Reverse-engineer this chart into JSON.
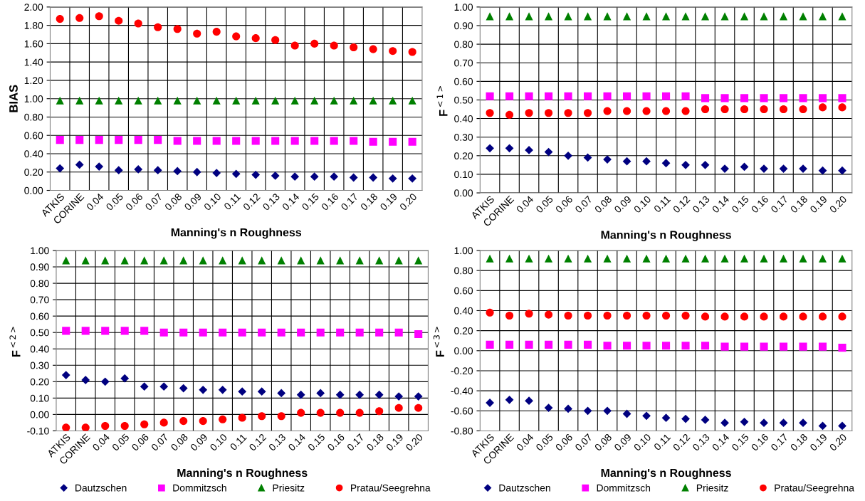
{
  "chart_data": [
    {
      "type": "scatter",
      "ylabel": "BIAS",
      "xlabel": "Manning's n Roughness",
      "categories": [
        "ATKIS",
        "CORINE",
        "0.04",
        "0.05",
        "0.06",
        "0.07",
        "0.08",
        "0.09",
        "0.10",
        "0.11",
        "0.12",
        "0.13",
        "0.14",
        "0.15",
        "0.16",
        "0.17",
        "0.18",
        "0.19",
        "0.20"
      ],
      "ylim": [
        0,
        2
      ],
      "yticks": [
        {
          "value": 0,
          "label": "0.00"
        },
        {
          "value": 0.2,
          "label": "0.20"
        },
        {
          "value": 0.4,
          "label": "0.40"
        },
        {
          "value": 0.6,
          "label": "0.60"
        },
        {
          "value": 0.8,
          "label": "0.80"
        },
        {
          "value": 1.0,
          "label": "1.00"
        },
        {
          "value": 1.2,
          "label": "1.20"
        },
        {
          "value": 1.4,
          "label": "1.40"
        },
        {
          "value": 1.6,
          "label": "1.60"
        },
        {
          "value": 1.8,
          "label": "1.80"
        },
        {
          "value": 2.0,
          "label": "2.00"
        }
      ],
      "grid": true,
      "legend": false,
      "series": [
        {
          "color": "#000080",
          "marker": "diamond",
          "values": [
            0.24,
            0.28,
            0.26,
            0.22,
            0.23,
            0.22,
            0.21,
            0.2,
            0.19,
            0.18,
            0.17,
            0.16,
            0.15,
            0.15,
            0.15,
            0.14,
            0.14,
            0.13,
            0.13
          ]
        },
        {
          "color": "#ff00ff",
          "marker": "square",
          "values": [
            0.55,
            0.55,
            0.55,
            0.55,
            0.55,
            0.55,
            0.54,
            0.54,
            0.54,
            0.54,
            0.54,
            0.54,
            0.54,
            0.54,
            0.54,
            0.54,
            0.53,
            0.53,
            0.53
          ]
        },
        {
          "color": "#008000",
          "marker": "triangle",
          "values": [
            0.98,
            0.98,
            0.98,
            0.98,
            0.98,
            0.98,
            0.98,
            0.98,
            0.98,
            0.98,
            0.98,
            0.98,
            0.98,
            0.98,
            0.98,
            0.98,
            0.98,
            0.98,
            0.98
          ]
        },
        {
          "color": "#ff0000",
          "marker": "circle",
          "values": [
            1.87,
            1.88,
            1.9,
            1.85,
            1.82,
            1.78,
            1.76,
            1.71,
            1.73,
            1.68,
            1.66,
            1.64,
            1.58,
            1.6,
            1.58,
            1.56,
            1.54,
            1.52,
            1.51
          ]
        }
      ]
    },
    {
      "type": "scatter",
      "ylabel": "F$^{<1>}$",
      "xlabel": "Manning's n Roughness",
      "categories": [
        "ATKIS",
        "CORINE",
        "0.04",
        "0.05",
        "0.06",
        "0.07",
        "0.08",
        "0.09",
        "0.10",
        "0.11",
        "0.12",
        "0.13",
        "0.14",
        "0.15",
        "0.16",
        "0.17",
        "0.18",
        "0.19",
        "0.20"
      ],
      "ylim": [
        0,
        1
      ],
      "yticks": [
        {
          "value": 0,
          "label": "0.00"
        },
        {
          "value": 0.1,
          "label": "0.10"
        },
        {
          "value": 0.2,
          "label": "0.20"
        },
        {
          "value": 0.3,
          "label": "0.30"
        },
        {
          "value": 0.4,
          "label": "0.40"
        },
        {
          "value": 0.5,
          "label": "0.50"
        },
        {
          "value": 0.6,
          "label": "0.60"
        },
        {
          "value": 0.7,
          "label": "0.70"
        },
        {
          "value": 0.8,
          "label": "0.80"
        },
        {
          "value": 0.9,
          "label": "0.90"
        },
        {
          "value": 1.0,
          "label": "1.00"
        }
      ],
      "grid": true,
      "legend": false,
      "series": [
        {
          "color": "#000080",
          "marker": "diamond",
          "values": [
            0.24,
            0.24,
            0.23,
            0.22,
            0.2,
            0.19,
            0.18,
            0.17,
            0.17,
            0.16,
            0.15,
            0.15,
            0.13,
            0.14,
            0.13,
            0.13,
            0.13,
            0.12,
            0.12
          ]
        },
        {
          "color": "#ff00ff",
          "marker": "square",
          "values": [
            0.52,
            0.52,
            0.52,
            0.52,
            0.52,
            0.52,
            0.52,
            0.52,
            0.52,
            0.52,
            0.52,
            0.51,
            0.51,
            0.51,
            0.51,
            0.51,
            0.51,
            0.51,
            0.51
          ]
        },
        {
          "color": "#008000",
          "marker": "triangle",
          "values": [
            0.95,
            0.95,
            0.95,
            0.95,
            0.95,
            0.95,
            0.95,
            0.95,
            0.95,
            0.95,
            0.95,
            0.95,
            0.95,
            0.95,
            0.95,
            0.95,
            0.95,
            0.95,
            0.95
          ]
        },
        {
          "color": "#ff0000",
          "marker": "circle",
          "values": [
            0.43,
            0.42,
            0.43,
            0.43,
            0.43,
            0.43,
            0.44,
            0.44,
            0.44,
            0.44,
            0.44,
            0.45,
            0.45,
            0.45,
            0.45,
            0.45,
            0.45,
            0.46,
            0.46
          ]
        }
      ]
    },
    {
      "type": "scatter",
      "ylabel": "F$^{<2>}$",
      "xlabel": "Manning's n Roughness",
      "categories": [
        "ATKIS",
        "CORINE",
        "0.04",
        "0.05",
        "0.06",
        "0.07",
        "0.08",
        "0.09",
        "0.10",
        "0.11",
        "0.12",
        "0.13",
        "0.14",
        "0.15",
        "0.16",
        "0.17",
        "0.18",
        "0.19",
        "0.20"
      ],
      "ylim": [
        -0.1,
        1
      ],
      "yticks": [
        {
          "value": -0.1,
          "label": "-0.10"
        },
        {
          "value": 0,
          "label": "0.00"
        },
        {
          "value": 0.1,
          "label": "0.10"
        },
        {
          "value": 0.2,
          "label": "0.20"
        },
        {
          "value": 0.3,
          "label": "0.30"
        },
        {
          "value": 0.4,
          "label": "0.40"
        },
        {
          "value": 0.5,
          "label": "0.50"
        },
        {
          "value": 0.6,
          "label": "0.60"
        },
        {
          "value": 0.7,
          "label": "0.70"
        },
        {
          "value": 0.8,
          "label": "0.80"
        },
        {
          "value": 0.9,
          "label": "0.90"
        },
        {
          "value": 1.0,
          "label": "1.00"
        }
      ],
      "grid": true,
      "legend": "bottom",
      "series": [
        {
          "name": "Dautzschen",
          "color": "#000080",
          "marker": "diamond",
          "values": [
            0.24,
            0.21,
            0.2,
            0.22,
            0.17,
            0.17,
            0.16,
            0.15,
            0.15,
            0.14,
            0.14,
            0.13,
            0.12,
            0.13,
            0.12,
            0.12,
            0.12,
            0.11,
            0.11
          ]
        },
        {
          "name": "Dommitzsch",
          "color": "#ff00ff",
          "marker": "square",
          "values": [
            0.51,
            0.51,
            0.51,
            0.51,
            0.51,
            0.5,
            0.5,
            0.5,
            0.5,
            0.5,
            0.5,
            0.5,
            0.5,
            0.5,
            0.5,
            0.5,
            0.5,
            0.5,
            0.49
          ]
        },
        {
          "name": "Priesitz",
          "color": "#008000",
          "marker": "triangle",
          "values": [
            0.94,
            0.94,
            0.94,
            0.94,
            0.94,
            0.94,
            0.94,
            0.94,
            0.94,
            0.94,
            0.94,
            0.94,
            0.94,
            0.94,
            0.94,
            0.94,
            0.94,
            0.94,
            0.94
          ]
        },
        {
          "name": "Pratau/Seegrehna",
          "color": "#ff0000",
          "marker": "circle",
          "values": [
            -0.08,
            -0.08,
            -0.07,
            -0.07,
            -0.06,
            -0.05,
            -0.04,
            -0.04,
            -0.03,
            -0.02,
            -0.01,
            -0.01,
            0.01,
            0.01,
            0.01,
            0.01,
            0.02,
            0.04,
            0.04
          ]
        }
      ]
    },
    {
      "type": "scatter",
      "ylabel": "F$^{<3>}$",
      "xlabel": "Manning's n Roughness",
      "categories": [
        "ATKIS",
        "CORINE",
        "0.04",
        "0.05",
        "0.06",
        "0.07",
        "0.08",
        "0.09",
        "0.10",
        "0.11",
        "0.12",
        "0.13",
        "0.14",
        "0.15",
        "0.16",
        "0.17",
        "0.18",
        "0.19",
        "0.20"
      ],
      "ylim": [
        -0.8,
        1
      ],
      "yticks": [
        {
          "value": -0.8,
          "label": "-0.80"
        },
        {
          "value": -0.6,
          "label": "-0.60"
        },
        {
          "value": -0.4,
          "label": "-0.40"
        },
        {
          "value": -0.2,
          "label": "-0.20"
        },
        {
          "value": 0,
          "label": "0.00"
        },
        {
          "value": 0.2,
          "label": "0.20"
        },
        {
          "value": 0.4,
          "label": "0.40"
        },
        {
          "value": 0.6,
          "label": "0.60"
        },
        {
          "value": 0.8,
          "label": "0.80"
        },
        {
          "value": 1.0,
          "label": "1.00"
        }
      ],
      "grid": true,
      "legend": "bottom",
      "series": [
        {
          "name": "Dautzschen",
          "color": "#000080",
          "marker": "diamond",
          "values": [
            -0.52,
            -0.49,
            -0.5,
            -0.57,
            -0.58,
            -0.6,
            -0.6,
            -0.63,
            -0.65,
            -0.67,
            -0.68,
            -0.69,
            -0.72,
            -0.71,
            -0.72,
            -0.72,
            -0.72,
            -0.75,
            -0.75
          ]
        },
        {
          "name": "Dommitzsch",
          "color": "#ff00ff",
          "marker": "square",
          "values": [
            0.06,
            0.06,
            0.06,
            0.06,
            0.06,
            0.06,
            0.05,
            0.05,
            0.05,
            0.05,
            0.05,
            0.05,
            0.04,
            0.04,
            0.04,
            0.04,
            0.04,
            0.04,
            0.03
          ]
        },
        {
          "name": "Priesitz",
          "color": "#008000",
          "marker": "triangle",
          "values": [
            0.92,
            0.92,
            0.92,
            0.92,
            0.92,
            0.92,
            0.92,
            0.92,
            0.92,
            0.92,
            0.92,
            0.92,
            0.92,
            0.92,
            0.92,
            0.92,
            0.92,
            0.92,
            0.92
          ]
        },
        {
          "name": "Pratau/Seegrehna",
          "color": "#ff0000",
          "marker": "circle",
          "values": [
            0.38,
            0.35,
            0.37,
            0.36,
            0.35,
            0.35,
            0.35,
            0.35,
            0.35,
            0.35,
            0.35,
            0.34,
            0.34,
            0.34,
            0.34,
            0.34,
            0.34,
            0.34,
            0.34
          ]
        }
      ]
    }
  ]
}
